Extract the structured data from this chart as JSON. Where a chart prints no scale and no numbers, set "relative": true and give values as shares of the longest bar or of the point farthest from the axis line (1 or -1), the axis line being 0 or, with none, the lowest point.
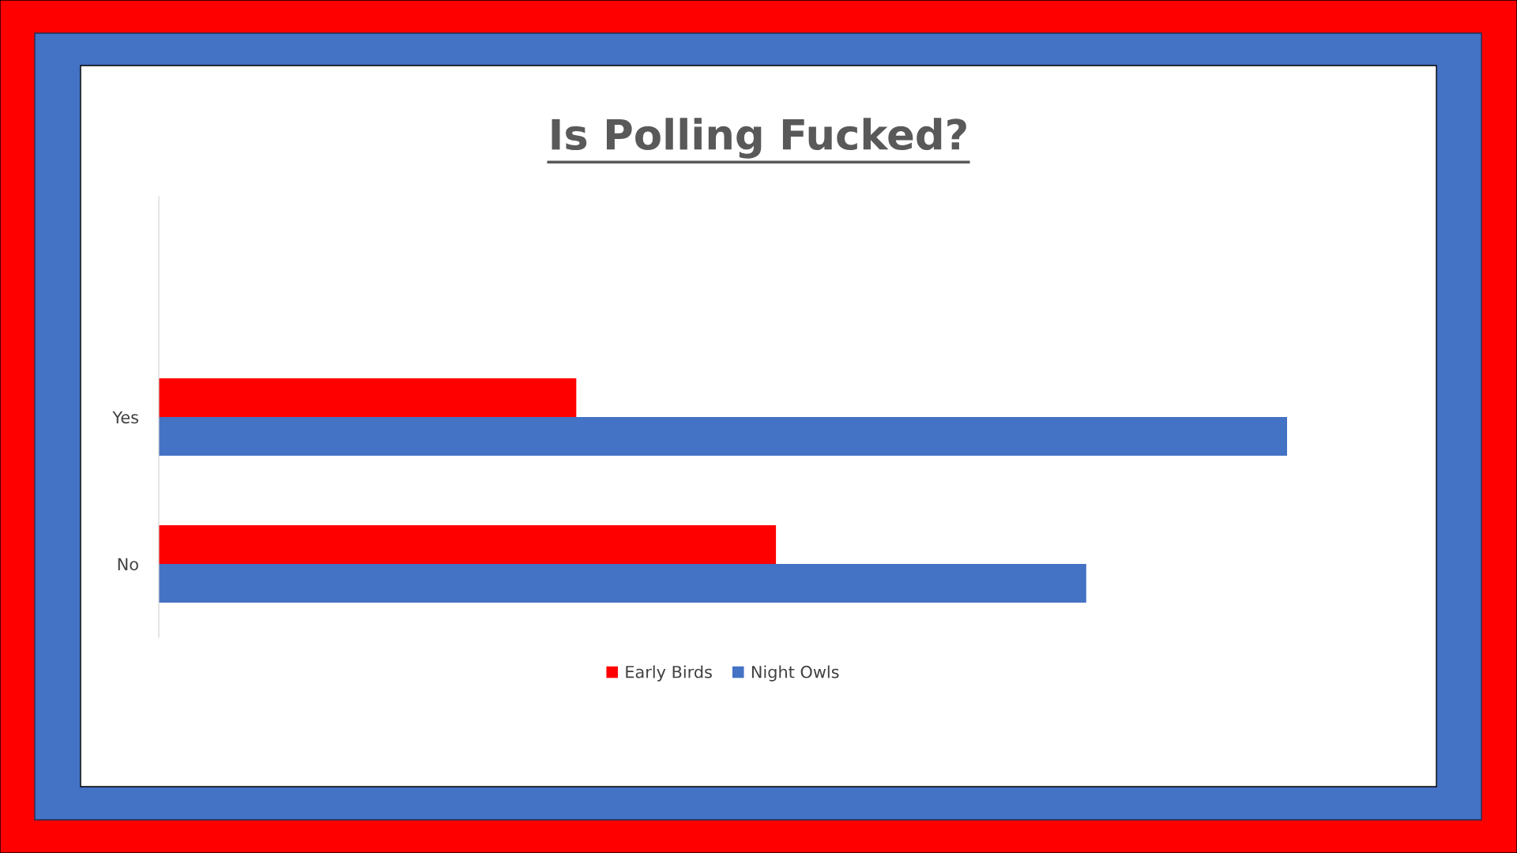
{
  "chart_data": {
    "type": "bar",
    "orientation": "horizontal",
    "relative": true,
    "title": "Is Polling Fucked?",
    "categories": [
      "Yes",
      "No"
    ],
    "series": [
      {
        "name": "Early Birds",
        "color": "#ff0000",
        "values": [
          0.37,
          0.547
        ]
      },
      {
        "name": "Night Owls",
        "color": "#4472c4",
        "values": [
          1.0,
          0.822
        ]
      }
    ],
    "legend": "bottom",
    "grid": false
  }
}
